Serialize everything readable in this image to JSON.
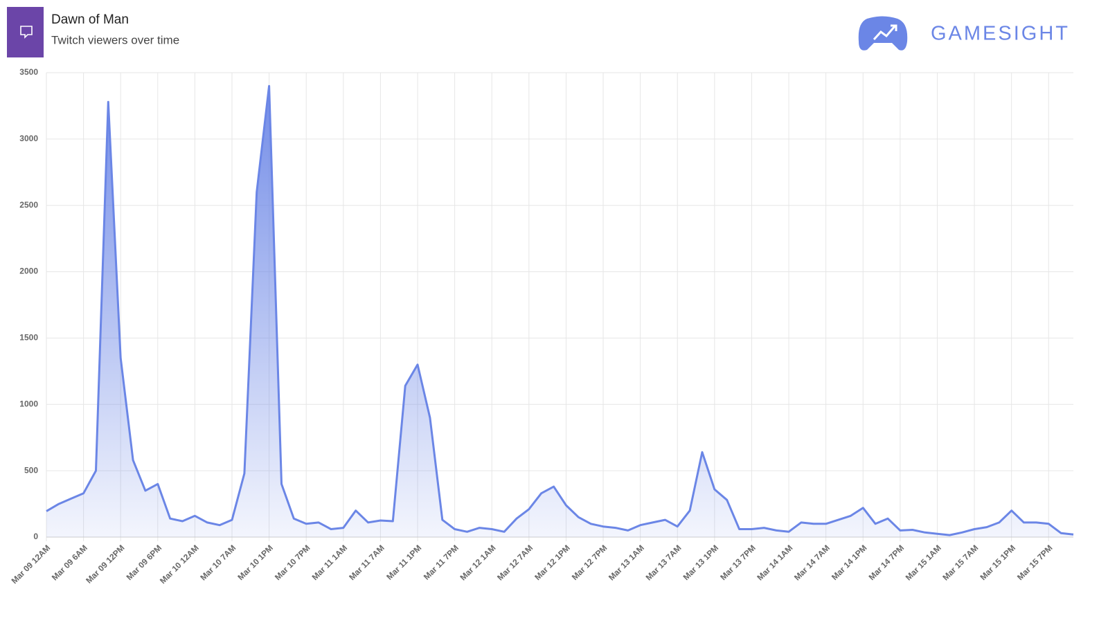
{
  "header": {
    "title": "Dawn of Man",
    "subtitle": "Twitch viewers over time",
    "brand": "GAMESIGHT"
  },
  "chart_data": {
    "type": "area",
    "color": "#6b86e6",
    "grid": true,
    "categories": [
      "Mar 09 12AM",
      null,
      null,
      "Mar 09 6AM",
      null,
      null,
      "Mar 09 12PM",
      null,
      null,
      "Mar 09 6PM",
      null,
      null,
      "Mar 10 12AM",
      null,
      null,
      "Mar 10 7AM",
      null,
      null,
      "Mar 10 1PM",
      null,
      null,
      "Mar 10 7PM",
      null,
      null,
      "Mar 11 1AM",
      null,
      null,
      "Mar 11 7AM",
      null,
      null,
      "Mar 11 1PM",
      null,
      null,
      "Mar 11 7PM",
      null,
      null,
      "Mar 12 1AM",
      null,
      null,
      "Mar 12 7AM",
      null,
      null,
      "Mar 12 1PM",
      null,
      null,
      "Mar 12 7PM",
      null,
      null,
      "Mar 13 1AM",
      null,
      null,
      "Mar 13 7AM",
      null,
      null,
      "Mar 13 1PM",
      null,
      null,
      "Mar 13 7PM",
      null,
      null,
      "Mar 14 1AM",
      null,
      null,
      "Mar 14 7AM",
      null,
      null,
      "Mar 14 1PM",
      null,
      null,
      "Mar 14 7PM",
      null,
      null,
      "Mar 15 1AM",
      null,
      null,
      "Mar 15 7AM",
      null,
      null,
      "Mar 15 1PM",
      null,
      null,
      "Mar 15 7PM",
      null,
      null
    ],
    "values": [
      195,
      250,
      290,
      330,
      500,
      3280,
      1350,
      580,
      350,
      400,
      140,
      120,
      160,
      110,
      90,
      130,
      480,
      2600,
      3400,
      400,
      140,
      100,
      110,
      60,
      70,
      200,
      110,
      125,
      120,
      1140,
      1300,
      900,
      130,
      60,
      40,
      70,
      60,
      40,
      140,
      210,
      330,
      380,
      240,
      150,
      100,
      80,
      70,
      50,
      90,
      110,
      130,
      80,
      200,
      640,
      360,
      280,
      60,
      60,
      70,
      50,
      40,
      110,
      100,
      100,
      130,
      160,
      220,
      100,
      140,
      50,
      55,
      35,
      25,
      15,
      35,
      60,
      75,
      110,
      200,
      110,
      110,
      100,
      30,
      20
    ],
    "ylim": [
      0,
      3500
    ],
    "yticks": [
      0,
      500,
      1000,
      1500,
      2000,
      2500,
      3000,
      3500
    ]
  }
}
